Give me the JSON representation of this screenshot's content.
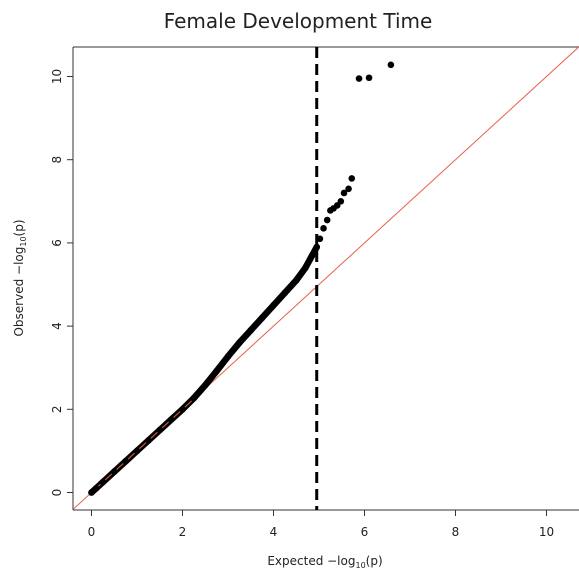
{
  "chart_data": {
    "type": "scatter",
    "title": "Female Development Time",
    "xlabel": {
      "prefix": "Expected  −log",
      "sub": "10",
      "suffix": "(p)"
    },
    "ylabel": {
      "prefix": "Observed  −log",
      "sub": "10",
      "suffix": "(p)"
    },
    "xlim": [
      -0.4,
      10.7
    ],
    "ylim": [
      -0.4,
      10.7
    ],
    "x_ticks": [
      0,
      2,
      4,
      6,
      8,
      10
    ],
    "y_ticks": [
      0,
      2,
      4,
      6,
      8,
      10
    ],
    "grid": false,
    "reference_line": {
      "slope": 1,
      "intercept": 0,
      "color": "#e8604c"
    },
    "threshold_line": {
      "x": 4.95,
      "style": "dashed",
      "color": "#000000"
    },
    "point_color": "#000000",
    "series": [
      {
        "x": [
          0.0,
          0.1,
          0.25,
          0.5,
          0.75,
          1.0,
          1.25,
          1.5,
          1.75,
          2.0,
          2.25,
          2.5,
          2.75,
          3.0,
          3.25,
          3.5,
          3.75,
          4.0,
          4.25,
          4.5,
          4.7,
          4.85,
          4.95,
          5.02,
          5.1,
          5.18,
          5.25,
          5.32,
          5.4,
          5.48,
          5.55,
          5.65,
          5.72,
          5.88,
          6.1,
          6.58
        ],
        "y": [
          0.0,
          0.1,
          0.25,
          0.5,
          0.75,
          1.0,
          1.25,
          1.5,
          1.75,
          2.0,
          2.27,
          2.58,
          2.92,
          3.27,
          3.6,
          3.9,
          4.2,
          4.5,
          4.8,
          5.1,
          5.4,
          5.7,
          5.9,
          6.1,
          6.35,
          6.55,
          6.78,
          6.83,
          6.9,
          7.0,
          7.2,
          7.3,
          7.55,
          9.95,
          9.97,
          10.28
        ]
      }
    ]
  }
}
